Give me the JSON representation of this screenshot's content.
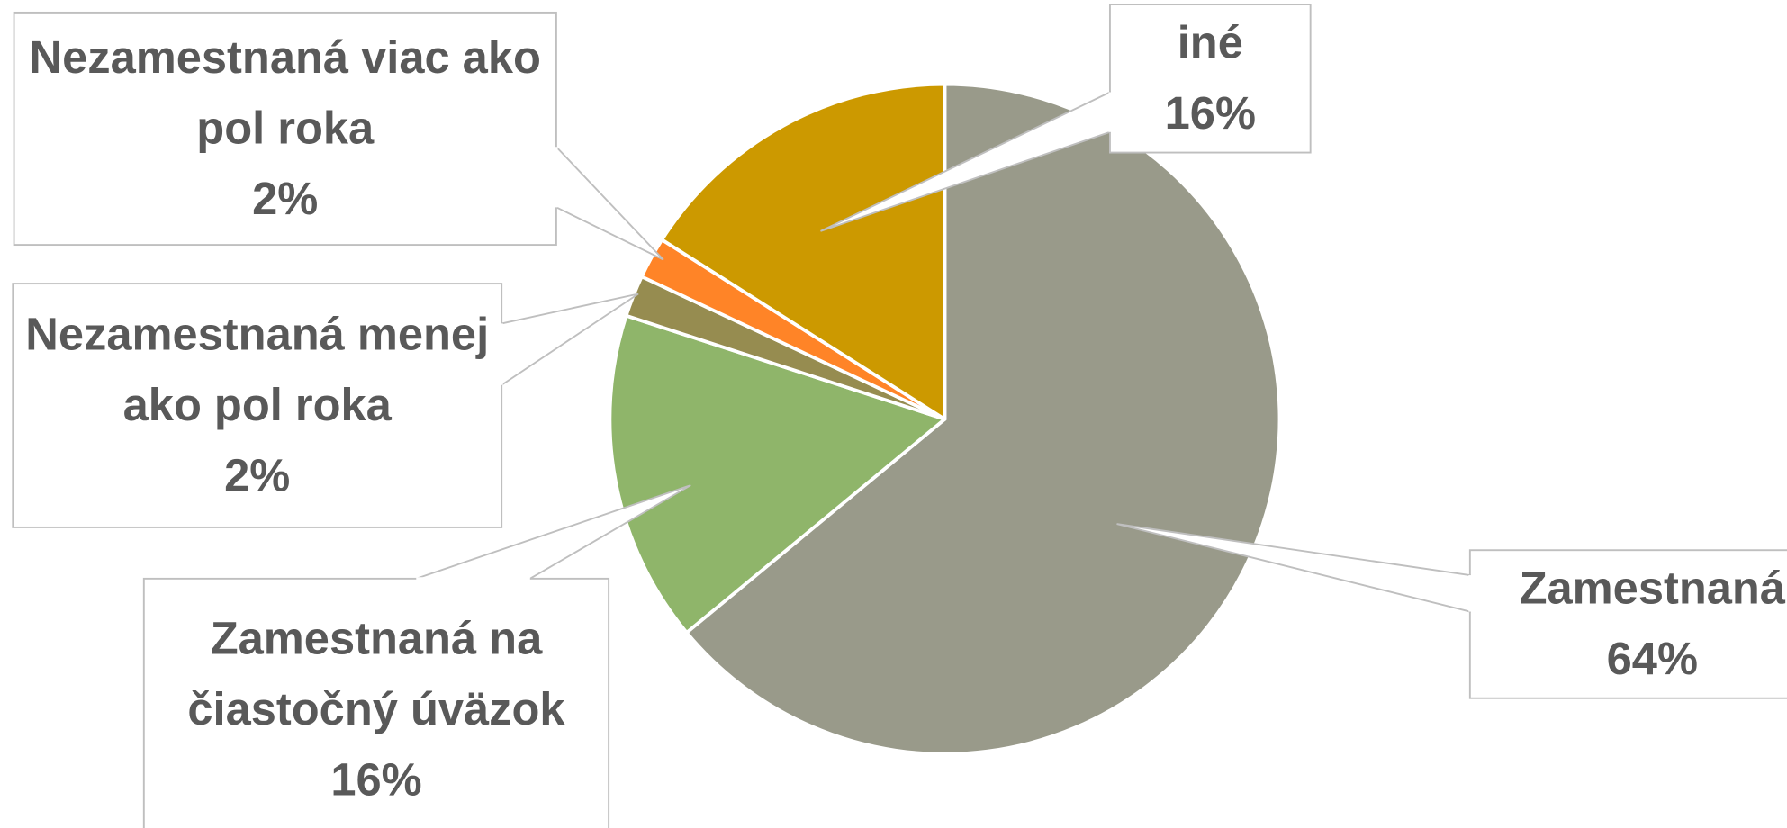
{
  "chart_data": {
    "type": "pie",
    "categories": [
      "Zamestnaná",
      "Zamestnaná na čiastočný úväzok",
      "Nezamestnaná menej ako pol roka",
      "Nezamestnaná viac ako pol roka",
      "iné"
    ],
    "values": [
      64,
      16,
      2,
      2,
      16
    ],
    "value_labels": [
      "64%",
      "16%",
      "2%",
      "2%",
      "16%"
    ],
    "colors": [
      "#999a8a",
      "#8fb56a",
      "#968c50",
      "#ff8427",
      "#cc9900"
    ]
  }
}
